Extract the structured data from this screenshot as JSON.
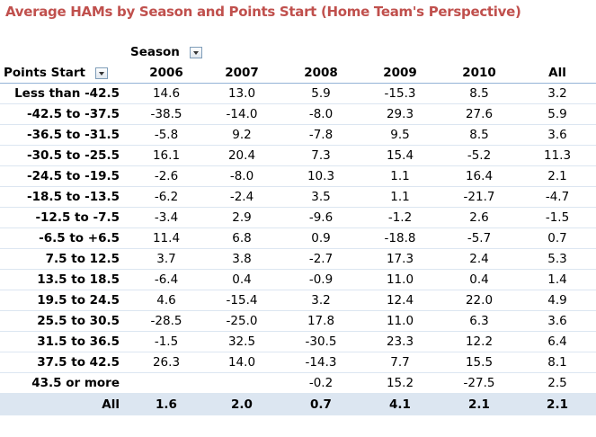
{
  "title": "Average HAMs by Season and Points Start (Home Team's Perspective)",
  "column_field_label": "Season",
  "row_field_label": "Points Start",
  "columns": [
    "2006",
    "2007",
    "2008",
    "2009",
    "2010",
    "All"
  ],
  "rows": [
    {
      "label": "Less than -42.5",
      "values": [
        "14.6",
        "13.0",
        "5.9",
        "-15.3",
        "8.5",
        "3.2"
      ]
    },
    {
      "label": "-42.5 to -37.5",
      "values": [
        "-38.5",
        "-14.0",
        "-8.0",
        "29.3",
        "27.6",
        "5.9"
      ]
    },
    {
      "label": "-36.5 to -31.5",
      "values": [
        "-5.8",
        "9.2",
        "-7.8",
        "9.5",
        "8.5",
        "3.6"
      ]
    },
    {
      "label": "-30.5 to -25.5",
      "values": [
        "16.1",
        "20.4",
        "7.3",
        "15.4",
        "-5.2",
        "11.3"
      ]
    },
    {
      "label": "-24.5 to -19.5",
      "values": [
        "-2.6",
        "-8.0",
        "10.3",
        "1.1",
        "16.4",
        "2.1"
      ]
    },
    {
      "label": "-18.5 to -13.5",
      "values": [
        "-6.2",
        "-2.4",
        "3.5",
        "1.1",
        "-21.7",
        "-4.7"
      ]
    },
    {
      "label": "-12.5 to -7.5",
      "values": [
        "-3.4",
        "2.9",
        "-9.6",
        "-1.2",
        "2.6",
        "-1.5"
      ]
    },
    {
      "label": "-6.5 to +6.5",
      "values": [
        "11.4",
        "6.8",
        "0.9",
        "-18.8",
        "-5.7",
        "0.7"
      ]
    },
    {
      "label": "7.5 to 12.5",
      "values": [
        "3.7",
        "3.8",
        "-2.7",
        "17.3",
        "2.4",
        "5.3"
      ]
    },
    {
      "label": "13.5 to 18.5",
      "values": [
        "-6.4",
        "0.4",
        "-0.9",
        "11.0",
        "0.4",
        "1.4"
      ]
    },
    {
      "label": "19.5 to 24.5",
      "values": [
        "4.6",
        "-15.4",
        "3.2",
        "12.4",
        "22.0",
        "4.9"
      ]
    },
    {
      "label": "25.5 to 30.5",
      "values": [
        "-28.5",
        "-25.0",
        "17.8",
        "11.0",
        "6.3",
        "3.6"
      ]
    },
    {
      "label": "31.5 to 36.5",
      "values": [
        "-1.5",
        "32.5",
        "-30.5",
        "23.3",
        "12.2",
        "6.4"
      ]
    },
    {
      "label": "37.5 to 42.5",
      "values": [
        "26.3",
        "14.0",
        "-14.3",
        "7.7",
        "15.5",
        "8.1"
      ]
    },
    {
      "label": "43.5 or more",
      "values": [
        "",
        "",
        "-0.2",
        "15.2",
        "-27.5",
        "2.5"
      ]
    }
  ],
  "total": {
    "label": "All",
    "values": [
      "1.6",
      "2.0",
      "0.7",
      "4.1",
      "2.1",
      "2.1"
    ]
  },
  "colors": {
    "title": "#c0504d",
    "total_row_bg": "#dce6f1",
    "header_border": "#95b3d7"
  }
}
